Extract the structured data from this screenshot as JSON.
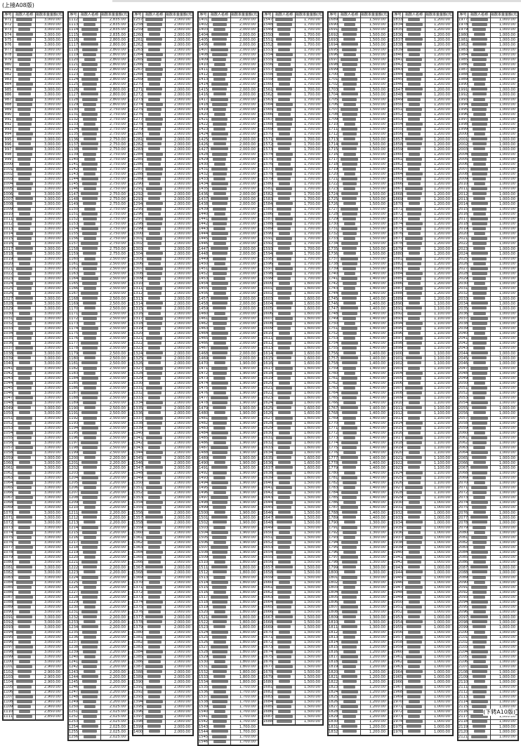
{
  "continued_from": "(上接A08版)",
  "continued_to": "(下转A10版)",
  "headers": [
    "序号",
    "捐款人名称",
    "捐款本金金额(元)"
  ],
  "columns": [
    {
      "start": 971,
      "end": 1111,
      "amounts": [
        [
          971,
          "3,000.00"
        ],
        [
          1101,
          "2,900.00"
        ],
        [
          1110,
          "2,850.00"
        ]
      ]
    },
    {
      "start": 1112,
      "end": 1256,
      "amounts": [
        [
          1112,
          "2,835.00"
        ],
        [
          1116,
          "2,800.00"
        ],
        [
          1130,
          "2,750.00"
        ],
        [
          1160,
          "2,500.00"
        ],
        [
          1200,
          "2,200.00"
        ],
        [
          1250,
          "2,025.00"
        ]
      ]
    },
    {
      "start": 1257,
      "end": 1400,
      "amounts": [
        [
          1257,
          "2,000.00"
        ]
      ]
    },
    {
      "start": 1401,
      "end": 1546,
      "amounts": [
        [
          1401,
          "2,000.00"
        ],
        [
          1470,
          "1,900.00"
        ],
        [
          1510,
          "1,800.00"
        ],
        [
          1535,
          "1,700.00"
        ]
      ]
    },
    {
      "start": 1547,
      "end": 1688,
      "amounts": [
        [
          1547,
          "1,700.00"
        ],
        [
          1600,
          "1,600.00"
        ],
        [
          1640,
          "1,500.00"
        ]
      ]
    },
    {
      "start": 1689,
      "end": 1832,
      "amounts": [
        [
          1689,
          "1,500.00"
        ],
        [
          1740,
          "1,400.00"
        ],
        [
          1790,
          "1,300.00"
        ],
        [
          1815,
          "1,200.00"
        ]
      ]
    },
    {
      "start": 1833,
      "end": 1976,
      "amounts": [
        [
          1833,
          "1,200.00"
        ],
        [
          1890,
          "1,100.00"
        ],
        [
          1930,
          "1,000.00"
        ]
      ]
    },
    {
      "start": 1977,
      "end": 2121,
      "amounts": [
        [
          1977,
          "1,000.00"
        ]
      ]
    }
  ]
}
